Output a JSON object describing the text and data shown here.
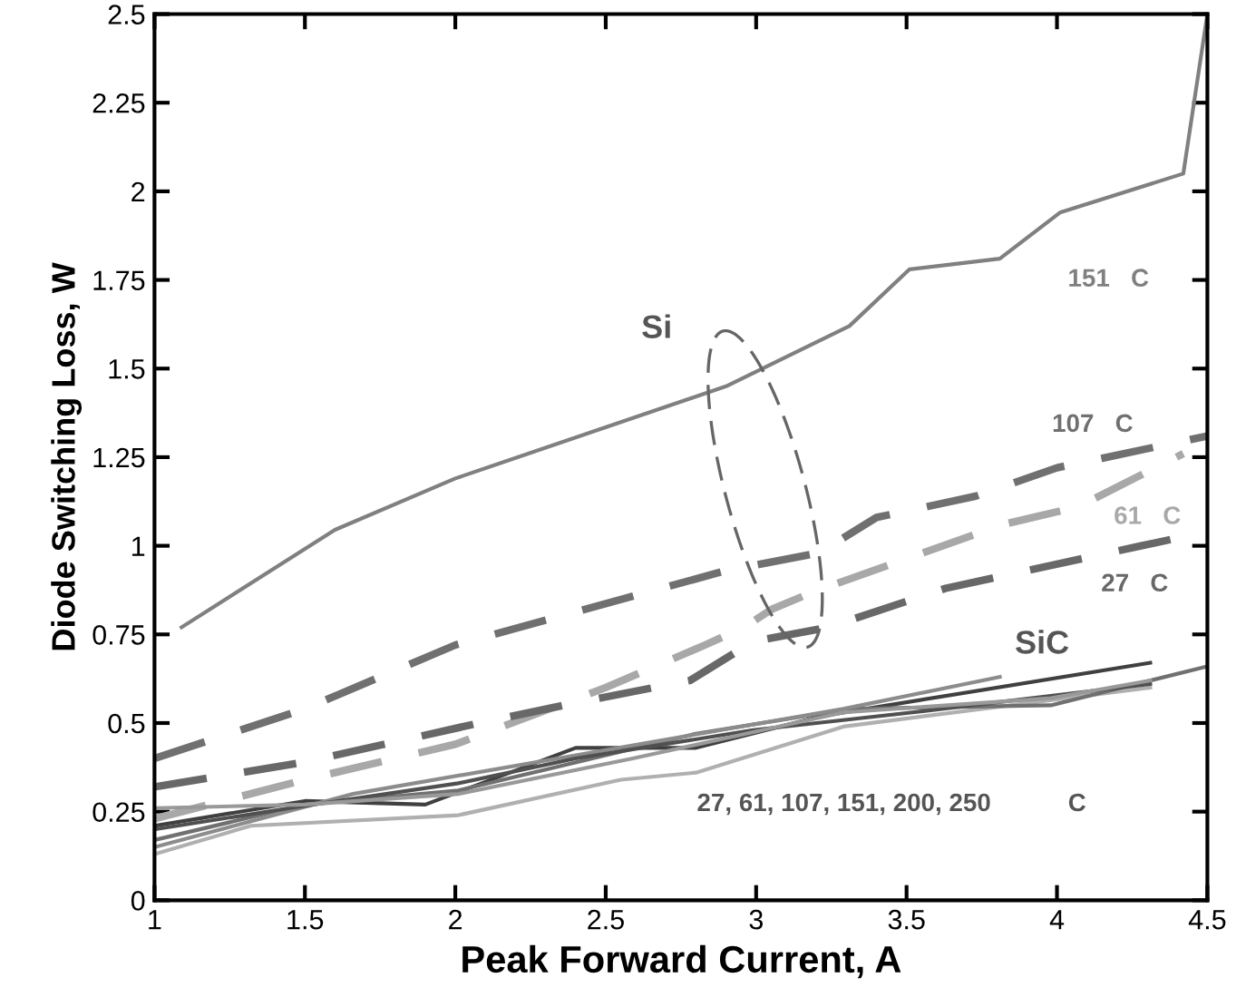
{
  "chart_data": {
    "type": "line",
    "xlabel": "Peak Forward Current, A",
    "ylabel": "Diode Switching Loss, W",
    "xlim": [
      1,
      4.5
    ],
    "xticks": [
      1,
      1.5,
      2,
      2.5,
      3,
      3.5,
      4,
      4.5
    ],
    "ylim": [
      0,
      2.5
    ],
    "yticks": [
      0,
      0.25,
      0.5,
      0.75,
      1,
      1.25,
      1.5,
      1.75,
      2,
      2.25,
      2.5
    ],
    "grid": false,
    "legend": false,
    "marker": "none",
    "series": [
      {
        "name": "151   C",
        "color": "#808080",
        "line_style": "solid",
        "x": [
          1.09,
          1.6,
          2.0,
          2.9,
          3.31,
          3.51,
          3.81,
          4.01,
          4.42,
          4.5
        ],
        "values": [
          0.77,
          1.045,
          1.19,
          1.45,
          1.62,
          1.78,
          1.81,
          1.94,
          2.05,
          2.5
        ]
      },
      {
        "name": "107   C",
        "color": "#707070",
        "line_style": "dashed",
        "x": [
          1.0,
          1.5,
          2.0,
          2.9,
          3.21,
          3.4,
          3.73,
          4.0,
          4.5
        ],
        "values": [
          0.4,
          0.54,
          0.72,
          0.93,
          0.98,
          1.08,
          1.14,
          1.22,
          1.31
        ]
      },
      {
        "name": "61   C",
        "color": "#a8a8a8",
        "line_style": "dashed",
        "x": [
          1.0,
          1.5,
          2.0,
          2.5,
          2.83,
          2.96,
          3.05,
          3.19,
          3.82,
          4.07,
          4.42
        ],
        "values": [
          0.23,
          0.34,
          0.44,
          0.6,
          0.72,
          0.77,
          0.82,
          0.87,
          1.06,
          1.11,
          1.26
        ]
      },
      {
        "name": "27   C",
        "color": "#686868",
        "line_style": "dashed",
        "x": [
          1.0,
          1.5,
          2.08,
          2.36,
          2.78,
          2.99,
          3.24,
          3.63,
          4.28,
          4.5
        ],
        "values": [
          0.32,
          0.39,
          0.5,
          0.55,
          0.62,
          0.73,
          0.77,
          0.88,
          1.0,
          1.04
        ]
      },
      {
        "color": "#b0b0b0",
        "line_style": "solid",
        "x": [
          1.0,
          1.32,
          2.01,
          2.55,
          2.8,
          3.29,
          4.31
        ],
        "values": [
          0.13,
          0.21,
          0.24,
          0.34,
          0.36,
          0.49,
          0.6
        ]
      },
      {
        "color": "#404040",
        "line_style": "solid",
        "x": [
          1.0,
          1.5,
          1.9,
          2.4,
          2.8,
          3.22,
          4.31
        ],
        "values": [
          0.21,
          0.28,
          0.27,
          0.43,
          0.43,
          0.52,
          0.67
        ]
      },
      {
        "color": "#707070",
        "line_style": "solid",
        "x": [
          1.0,
          1.5,
          2.01,
          2.8,
          3.31,
          3.98,
          4.5
        ],
        "values": [
          0.17,
          0.27,
          0.31,
          0.47,
          0.54,
          0.55,
          0.66
        ]
      },
      {
        "color": "#8c8c8c",
        "line_style": "solid",
        "x": [
          1.0,
          1.66,
          3.29,
          3.81
        ],
        "values": [
          0.15,
          0.3,
          0.54,
          0.63
        ]
      },
      {
        "color": "#505050",
        "line_style": "solid",
        "x": [
          1.0,
          1.45,
          2.01,
          2.4,
          2.99,
          3.52,
          4.31
        ],
        "values": [
          0.2,
          0.26,
          0.33,
          0.4,
          0.48,
          0.53,
          0.61
        ]
      },
      {
        "color": "#999999",
        "line_style": "solid",
        "x": [
          1.0,
          1.5,
          2.01,
          2.59,
          3.29,
          3.98,
          4.31
        ],
        "values": [
          0.26,
          0.27,
          0.3,
          0.4,
          0.53,
          0.57,
          0.62
        ]
      }
    ],
    "annotations": [
      "Si",
      "SiC",
      "27, 61, 107, 151, 200, 250           C"
    ]
  }
}
